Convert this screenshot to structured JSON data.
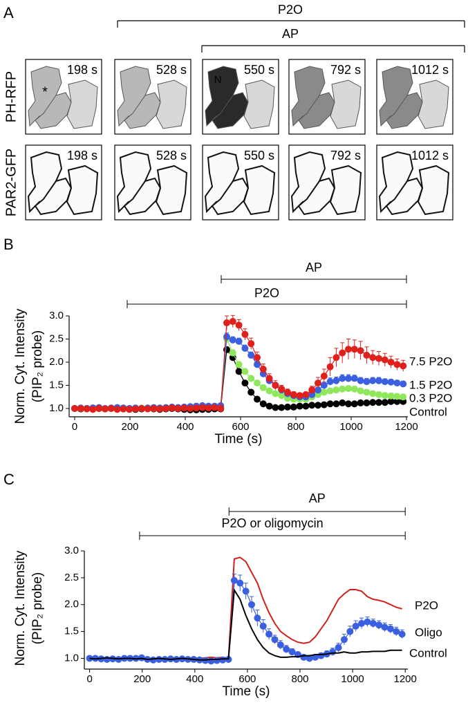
{
  "panel_a": {
    "label": "A",
    "bars": [
      {
        "label": "P2O"
      },
      {
        "label": "AP"
      }
    ],
    "rows": [
      {
        "label": "PH-RFP",
        "color": "#c8161d"
      },
      {
        "label": "PAR2-GFP",
        "color": "#3a9c3a"
      }
    ],
    "times": [
      "198 s",
      "528 s",
      "550 s",
      "792 s",
      "1012 s"
    ],
    "markers": [
      "*",
      "N"
    ],
    "marker_color": "#d0201b"
  },
  "chart_data": [
    {
      "type": "line",
      "panel_label": "B",
      "xlabel": "Time (s)",
      "ylabel": [
        "Norm. Cyt. Intensity",
        "(PIP₂ probe)"
      ],
      "xlim": [
        -20,
        1205
      ],
      "ylim": [
        0.82,
        3.0
      ],
      "xticks": [
        0,
        200,
        400,
        600,
        800,
        1000,
        1200
      ],
      "yticks": [
        {
          "value": 1,
          "label": "1.0"
        },
        1.5,
        {
          "value": 2,
          "label": "2.0"
        },
        2.5,
        {
          "value": 3,
          "label": "3.0"
        }
      ],
      "annotations": [
        {
          "label": "AP",
          "start": 530,
          "end": 1200
        },
        {
          "label": "P2O",
          "start": 190,
          "end": 1200
        }
      ],
      "x": [
        0,
        22,
        44,
        66,
        88,
        110,
        132,
        154,
        176,
        198,
        220,
        242,
        264,
        286,
        308,
        330,
        352,
        374,
        396,
        418,
        440,
        462,
        484,
        506,
        528,
        550,
        572,
        594,
        616,
        638,
        660,
        682,
        704,
        726,
        748,
        770,
        792,
        814,
        836,
        858,
        880,
        902,
        924,
        946,
        968,
        990,
        1012,
        1034,
        1056,
        1078,
        1100,
        1122,
        1144,
        1166,
        1188
      ],
      "series": [
        {
          "name": "Control",
          "color": "#000000",
          "style": "markers",
          "values": [
            1.0,
            0.99,
            1.0,
            1.01,
            1.0,
            0.99,
            1.0,
            1.0,
            0.99,
            1.0,
            0.98,
            0.99,
            1.0,
            0.99,
            0.98,
            0.99,
            1.0,
            0.99,
            0.98,
            0.97,
            0.97,
            0.98,
            0.98,
            0.99,
            0.99,
            2.27,
            2.1,
            1.8,
            1.55,
            1.35,
            1.2,
            1.1,
            1.05,
            1.02,
            1.02,
            1.03,
            1.03,
            1.05,
            1.05,
            1.07,
            1.07,
            1.08,
            1.1,
            1.1,
            1.12,
            1.1,
            1.1,
            1.12,
            1.12,
            1.13,
            1.13,
            1.13,
            1.15,
            1.15,
            1.15
          ],
          "errors": [
            0.02,
            0.02,
            0.02,
            0.02,
            0.02,
            0.02,
            0.02,
            0.02,
            0.02,
            0.02,
            0.02,
            0.02,
            0.02,
            0.02,
            0.02,
            0.02,
            0.02,
            0.02,
            0.02,
            0.02,
            0.02,
            0.02,
            0.02,
            0.02,
            0.02,
            0.06,
            0.06,
            0.05,
            0.05,
            0.05,
            0.04,
            0.04,
            0.03,
            0.03,
            0.03,
            0.03,
            0.03,
            0.03,
            0.03,
            0.04,
            0.04,
            0.04,
            0.05,
            0.05,
            0.05,
            0.05,
            0.05,
            0.05,
            0.05,
            0.05,
            0.05,
            0.05,
            0.05,
            0.05,
            0.05
          ]
        },
        {
          "name": "0.3 P2O",
          "color": "#8fe85c",
          "style": "markers",
          "values": [
            1.0,
            1.0,
            1.0,
            1.0,
            1.01,
            1.0,
            1.0,
            1.01,
            1.0,
            1.0,
            1.0,
            1.01,
            1.0,
            1.0,
            1.01,
            1.01,
            1.02,
            1.02,
            1.02,
            1.02,
            1.03,
            1.03,
            1.04,
            1.04,
            1.03,
            2.5,
            2.2,
            1.95,
            1.8,
            1.65,
            1.55,
            1.45,
            1.38,
            1.32,
            1.28,
            1.22,
            1.2,
            1.2,
            1.2,
            1.25,
            1.3,
            1.35,
            1.38,
            1.4,
            1.42,
            1.43,
            1.42,
            1.38,
            1.35,
            1.32,
            1.3,
            1.28,
            1.27,
            1.26,
            1.25
          ],
          "errors": [
            0.02,
            0.02,
            0.02,
            0.02,
            0.02,
            0.02,
            0.02,
            0.02,
            0.02,
            0.02,
            0.02,
            0.02,
            0.02,
            0.02,
            0.02,
            0.02,
            0.02,
            0.02,
            0.02,
            0.02,
            0.02,
            0.02,
            0.02,
            0.02,
            0.02,
            0.07,
            0.07,
            0.06,
            0.06,
            0.06,
            0.06,
            0.06,
            0.05,
            0.05,
            0.05,
            0.04,
            0.04,
            0.04,
            0.04,
            0.05,
            0.05,
            0.06,
            0.06,
            0.06,
            0.06,
            0.06,
            0.06,
            0.06,
            0.06,
            0.06,
            0.06,
            0.06,
            0.06,
            0.06,
            0.06
          ]
        },
        {
          "name": "1.5 P2O",
          "color": "#3a5fe0",
          "style": "markers",
          "values": [
            1.0,
            1.01,
            1.0,
            1.01,
            1.02,
            1.0,
            1.01,
            1.02,
            1.01,
            1.0,
            1.01,
            1.0,
            1.01,
            1.02,
            1.01,
            1.02,
            1.03,
            1.02,
            1.03,
            1.04,
            1.05,
            1.06,
            1.05,
            1.05,
            1.06,
            2.55,
            2.48,
            2.45,
            2.3,
            2.15,
            1.95,
            1.75,
            1.6,
            1.5,
            1.4,
            1.32,
            1.28,
            1.25,
            1.25,
            1.3,
            1.4,
            1.5,
            1.58,
            1.6,
            1.65,
            1.65,
            1.65,
            1.6,
            1.58,
            1.6,
            1.6,
            1.58,
            1.57,
            1.55,
            1.53
          ],
          "errors": [
            0.02,
            0.02,
            0.02,
            0.02,
            0.02,
            0.02,
            0.02,
            0.02,
            0.02,
            0.02,
            0.02,
            0.02,
            0.02,
            0.02,
            0.02,
            0.02,
            0.02,
            0.02,
            0.02,
            0.02,
            0.02,
            0.02,
            0.02,
            0.02,
            0.02,
            0.08,
            0.07,
            0.07,
            0.07,
            0.07,
            0.07,
            0.06,
            0.06,
            0.05,
            0.05,
            0.04,
            0.04,
            0.04,
            0.04,
            0.05,
            0.06,
            0.07,
            0.08,
            0.08,
            0.08,
            0.08,
            0.07,
            0.07,
            0.07,
            0.07,
            0.07,
            0.06,
            0.06,
            0.06,
            0.06
          ]
        },
        {
          "name": "7.5 P2O",
          "color": "#e0201b",
          "style": "markers",
          "values": [
            1.0,
            1.0,
            0.99,
            0.98,
            1.0,
            0.99,
            1.0,
            0.98,
            0.99,
            0.98,
            0.99,
            1.0,
            0.99,
            1.0,
            0.99,
            1.0,
            1.01,
            1.0,
            1.01,
            1.0,
            1.01,
            1.02,
            1.01,
            1.02,
            1.0,
            2.85,
            2.88,
            2.8,
            2.6,
            2.4,
            2.1,
            1.85,
            1.65,
            1.5,
            1.42,
            1.35,
            1.3,
            1.28,
            1.3,
            1.4,
            1.55,
            1.7,
            1.9,
            2.1,
            2.2,
            2.28,
            2.28,
            2.25,
            2.15,
            2.1,
            2.08,
            2.05,
            2.0,
            1.95,
            1.92
          ],
          "errors": [
            0.02,
            0.02,
            0.02,
            0.02,
            0.02,
            0.02,
            0.02,
            0.02,
            0.02,
            0.02,
            0.02,
            0.02,
            0.02,
            0.02,
            0.02,
            0.02,
            0.02,
            0.02,
            0.02,
            0.02,
            0.02,
            0.02,
            0.02,
            0.02,
            0.02,
            0.15,
            0.13,
            0.12,
            0.12,
            0.12,
            0.12,
            0.11,
            0.1,
            0.1,
            0.08,
            0.07,
            0.06,
            0.05,
            0.05,
            0.08,
            0.12,
            0.15,
            0.2,
            0.2,
            0.22,
            0.22,
            0.2,
            0.2,
            0.18,
            0.15,
            0.15,
            0.14,
            0.13,
            0.12,
            0.12
          ]
        }
      ]
    },
    {
      "type": "line",
      "panel_label": "C",
      "xlabel": "Time (s)",
      "ylabel": [
        "Norm. Cyt. Intensity",
        "(PIP₂ probe)"
      ],
      "xlim": [
        -20,
        1210
      ],
      "ylim": [
        0.8,
        3.0
      ],
      "xticks": [
        0,
        200,
        400,
        600,
        800,
        1000,
        1200
      ],
      "yticks": [
        {
          "value": 1,
          "label": "1.0"
        },
        1.5,
        {
          "value": 2,
          "label": "2.0"
        },
        2.5,
        {
          "value": 3,
          "label": "3.0"
        }
      ],
      "annotations": [
        {
          "label": "AP",
          "start": 530,
          "end": 1200
        },
        {
          "label": "P2O or oligomycin",
          "start": 190,
          "end": 1200
        }
      ],
      "x": [
        0,
        22,
        44,
        66,
        88,
        110,
        132,
        154,
        176,
        198,
        220,
        242,
        264,
        286,
        308,
        330,
        352,
        374,
        396,
        418,
        440,
        462,
        484,
        506,
        528,
        550,
        572,
        594,
        616,
        638,
        660,
        682,
        704,
        726,
        748,
        770,
        792,
        814,
        836,
        858,
        880,
        902,
        924,
        946,
        968,
        990,
        1012,
        1034,
        1056,
        1078,
        1100,
        1122,
        1144,
        1166,
        1188
      ],
      "series": [
        {
          "name": "P2O",
          "color": "#d0201b",
          "style": "line",
          "values": [
            1.0,
            1.0,
            0.99,
            0.98,
            1.0,
            0.99,
            1.0,
            0.98,
            0.99,
            0.98,
            0.99,
            1.0,
            0.99,
            1.0,
            0.99,
            1.0,
            1.01,
            1.0,
            1.01,
            1.0,
            1.01,
            1.02,
            1.01,
            1.02,
            1.0,
            2.85,
            2.88,
            2.8,
            2.6,
            2.4,
            2.1,
            1.85,
            1.65,
            1.5,
            1.42,
            1.35,
            1.3,
            1.28,
            1.3,
            1.4,
            1.55,
            1.7,
            1.9,
            2.1,
            2.2,
            2.28,
            2.28,
            2.25,
            2.15,
            2.1,
            2.08,
            2.05,
            2.0,
            1.95,
            1.92
          ]
        },
        {
          "name": "Oligo",
          "color": "#3a5fe0",
          "style": "markers",
          "values": [
            1.0,
            1.0,
            0.99,
            0.98,
            0.99,
            0.98,
            1.0,
            1.0,
            1.0,
            1.01,
            0.98,
            0.97,
            0.98,
            0.98,
            0.99,
            0.98,
            0.99,
            0.98,
            0.98,
            0.97,
            0.96,
            0.95,
            0.96,
            0.97,
            0.98,
            2.45,
            2.4,
            2.25,
            2.0,
            1.75,
            1.6,
            1.45,
            1.35,
            1.25,
            1.17,
            1.12,
            1.07,
            1.02,
            1.0,
            1.02,
            1.05,
            1.08,
            1.12,
            1.2,
            1.35,
            1.5,
            1.6,
            1.65,
            1.68,
            1.65,
            1.62,
            1.58,
            1.55,
            1.5,
            1.45
          ],
          "errors": [
            0.02,
            0.02,
            0.02,
            0.02,
            0.02,
            0.02,
            0.02,
            0.02,
            0.02,
            0.02,
            0.02,
            0.02,
            0.02,
            0.02,
            0.02,
            0.02,
            0.02,
            0.02,
            0.02,
            0.02,
            0.02,
            0.02,
            0.02,
            0.02,
            0.02,
            0.12,
            0.15,
            0.15,
            0.15,
            0.15,
            0.12,
            0.1,
            0.08,
            0.08,
            0.07,
            0.06,
            0.05,
            0.05,
            0.05,
            0.05,
            0.05,
            0.06,
            0.07,
            0.08,
            0.1,
            0.1,
            0.1,
            0.1,
            0.09,
            0.08,
            0.08,
            0.08,
            0.08,
            0.08,
            0.08
          ]
        },
        {
          "name": "Control",
          "color": "#000000",
          "style": "line",
          "values": [
            1.0,
            0.99,
            1.0,
            1.01,
            1.0,
            0.99,
            1.0,
            1.0,
            0.99,
            1.0,
            0.98,
            0.99,
            1.0,
            0.99,
            0.98,
            0.99,
            1.0,
            0.99,
            0.98,
            0.97,
            0.97,
            0.98,
            0.98,
            0.99,
            0.99,
            2.27,
            2.1,
            1.8,
            1.55,
            1.35,
            1.2,
            1.1,
            1.05,
            1.02,
            1.02,
            1.03,
            1.03,
            1.05,
            1.05,
            1.07,
            1.07,
            1.08,
            1.1,
            1.1,
            1.12,
            1.1,
            1.1,
            1.12,
            1.12,
            1.13,
            1.13,
            1.13,
            1.15,
            1.15,
            1.15
          ]
        }
      ]
    }
  ]
}
